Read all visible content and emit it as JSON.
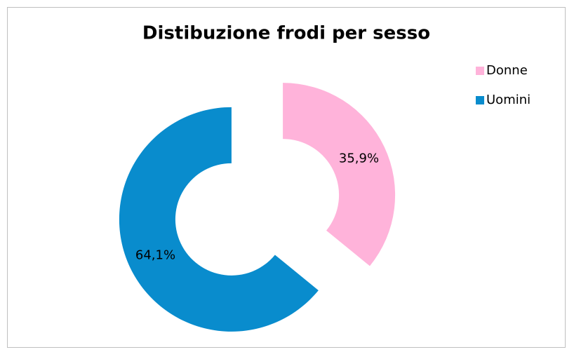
{
  "chart_data": {
    "type": "donut",
    "title": "Distibuzione frodi per sesso",
    "categories": [
      "Donne",
      "Uomini"
    ],
    "values": [
      35.9,
      64.1
    ],
    "value_labels": [
      "35,9%",
      "64,1%"
    ],
    "colors": [
      "#ffb3da",
      "#098ccd"
    ],
    "legend": "right"
  }
}
